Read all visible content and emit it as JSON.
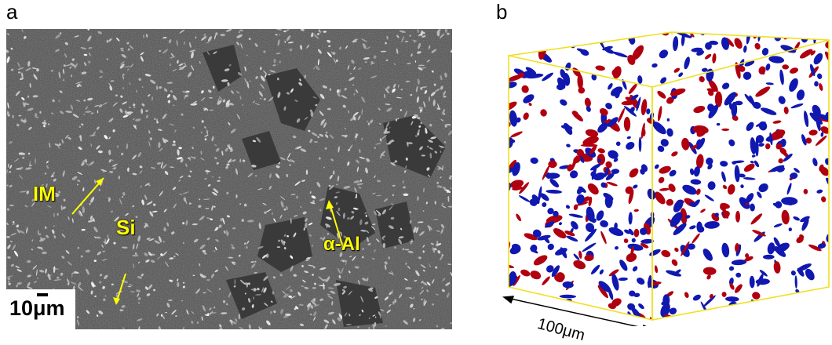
{
  "panels": {
    "a_letter": "a",
    "b_letter": "b"
  },
  "sem_labels": {
    "im": "IM",
    "si": "Si",
    "alpha_al": "α-Al"
  },
  "sem_scalebar": "10μm",
  "cube_scalebar": "100μm",
  "colors": {
    "label_yellow": "#ffff00",
    "cube_frame": "#f0e020",
    "phase_red": "#b00010",
    "phase_blue": "#1018b0"
  }
}
